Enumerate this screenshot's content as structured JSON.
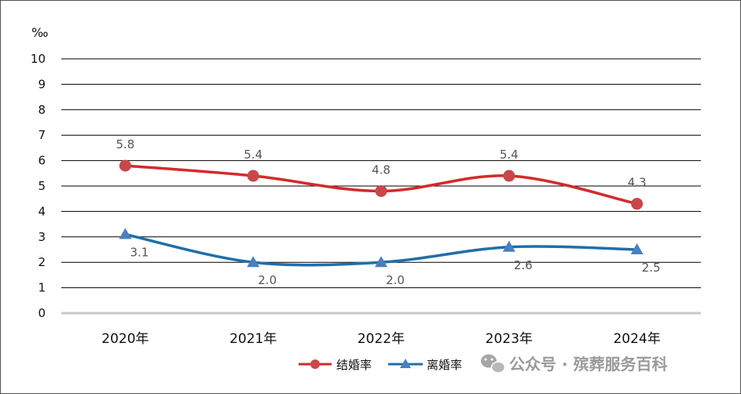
{
  "chart_data": {
    "type": "line",
    "unit": "‰",
    "categories": [
      "2020年",
      "2021年",
      "2022年",
      "2023年",
      "2024年"
    ],
    "ylim": [
      0,
      10
    ],
    "yticks": [
      0,
      1,
      2,
      3,
      4,
      5,
      6,
      7,
      8,
      9,
      10
    ],
    "grid": true,
    "legend_position": "bottom-right",
    "series": [
      {
        "name": "结婚率",
        "values": [
          5.8,
          5.4,
          4.8,
          5.4,
          4.3
        ],
        "labels": [
          "5.8",
          "5.4",
          "4.8",
          "5.4",
          "4.3"
        ],
        "marker": "circle",
        "color": "#d42a2a",
        "marker_color": "#c9474a"
      },
      {
        "name": "离婚率",
        "values": [
          3.1,
          2.0,
          2.0,
          2.6,
          2.5
        ],
        "labels": [
          "3.1",
          "2.0",
          "2.0",
          "2.6",
          "2.5"
        ],
        "marker": "triangle",
        "color": "#1f6fa8",
        "marker_color": "#4a7fc0"
      }
    ]
  },
  "watermark": {
    "text": "公众号 · 殡葬服务百科",
    "icon": "wechat-icon"
  }
}
